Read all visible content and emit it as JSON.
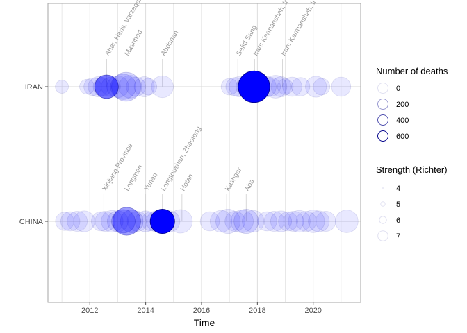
{
  "chart_data": {
    "type": "scatter",
    "title": "",
    "xlabel": "Time",
    "ylabel": "",
    "xlim": [
      2010.5,
      2021.7
    ],
    "x_ticks": [
      "2012",
      "2014",
      "2016",
      "2018",
      "2020"
    ],
    "categories": [
      "CHINA",
      "IRAN"
    ],
    "grid": true,
    "legend_position": "right",
    "colors": {
      "fill": "#0000ff",
      "outline": "#00008b",
      "grid": "#d9d9d9",
      "panel_border": "#a6a6a6"
    },
    "size_legend": {
      "title": "Number of deaths",
      "entries": [
        {
          "label": "0",
          "value": 0
        },
        {
          "label": "200",
          "value": 200
        },
        {
          "label": "400",
          "value": 400
        },
        {
          "label": "600",
          "value": 600
        }
      ]
    },
    "strength_legend": {
      "title": "Strength (Richter)",
      "entries": [
        {
          "label": "4",
          "value": 4
        },
        {
          "label": "5",
          "value": 5
        },
        {
          "label": "6",
          "value": 6
        },
        {
          "label": "7",
          "value": 7
        }
      ]
    },
    "annotations": [
      {
        "country": "IRAN",
        "x": 2012.6,
        "text": "Ahar, Haris, Varzaqan"
      },
      {
        "country": "IRAN",
        "x": 2013.3,
        "text": "Mashhad"
      },
      {
        "country": "IRAN",
        "x": 2014.6,
        "text": "Abdanan"
      },
      {
        "country": "IRAN",
        "x": 2017.3,
        "text": "Sefid Sang"
      },
      {
        "country": "IRAN",
        "x": 2017.9,
        "text": "Iran: Kermanshah; Ir"
      },
      {
        "country": "IRAN",
        "x": 2018.9,
        "text": "Iran: Kermanshah; Ir"
      },
      {
        "country": "CHINA",
        "x": 2012.5,
        "text": "Xinjiang Province"
      },
      {
        "country": "CHINA",
        "x": 2013.3,
        "text": "Longmen"
      },
      {
        "country": "CHINA",
        "x": 2014.0,
        "text": "Yunan"
      },
      {
        "country": "CHINA",
        "x": 2014.6,
        "text": "Longtoushan, Zhaotong"
      },
      {
        "country": "CHINA",
        "x": 2015.3,
        "text": "Hotan"
      },
      {
        "country": "CHINA",
        "x": 2016.9,
        "text": "Kashgar"
      },
      {
        "country": "CHINA",
        "x": 2017.6,
        "text": "Aba"
      }
    ],
    "series": [
      {
        "country": "IRAN",
        "points": [
          {
            "x": 2011.0,
            "magnitude": 5.2,
            "deaths": 0
          },
          {
            "x": 2011.9,
            "magnitude": 5.4,
            "deaths": 0
          },
          {
            "x": 2012.1,
            "magnitude": 5.7,
            "deaths": 2
          },
          {
            "x": 2012.3,
            "magnitude": 6.0,
            "deaths": 3
          },
          {
            "x": 2012.45,
            "magnitude": 5.8,
            "deaths": 1
          },
          {
            "x": 2012.6,
            "magnitude": 6.4,
            "deaths": 306
          },
          {
            "x": 2012.75,
            "magnitude": 5.9,
            "deaths": 2
          },
          {
            "x": 2013.0,
            "magnitude": 6.2,
            "deaths": 5
          },
          {
            "x": 2013.2,
            "magnitude": 6.6,
            "deaths": 37
          },
          {
            "x": 2013.3,
            "magnitude": 7.0,
            "deaths": 50
          },
          {
            "x": 2013.45,
            "magnitude": 6.3,
            "deaths": 5
          },
          {
            "x": 2013.65,
            "magnitude": 5.9,
            "deaths": 1
          },
          {
            "x": 2013.95,
            "magnitude": 6.0,
            "deaths": 2
          },
          {
            "x": 2014.1,
            "magnitude": 5.6,
            "deaths": 0
          },
          {
            "x": 2014.6,
            "magnitude": 6.2,
            "deaths": 0
          },
          {
            "x": 2017.0,
            "magnitude": 5.6,
            "deaths": 0
          },
          {
            "x": 2017.2,
            "magnitude": 5.8,
            "deaths": 1
          },
          {
            "x": 2017.35,
            "magnitude": 6.0,
            "deaths": 2
          },
          {
            "x": 2017.55,
            "magnitude": 5.7,
            "deaths": 0
          },
          {
            "x": 2017.7,
            "magnitude": 6.2,
            "deaths": 10
          },
          {
            "x": 2017.88,
            "magnitude": 7.3,
            "deaths": 630
          },
          {
            "x": 2018.1,
            "magnitude": 5.9,
            "deaths": 2
          },
          {
            "x": 2018.3,
            "magnitude": 6.1,
            "deaths": 5
          },
          {
            "x": 2018.5,
            "magnitude": 5.8,
            "deaths": 1
          },
          {
            "x": 2018.65,
            "magnitude": 6.3,
            "deaths": 3
          },
          {
            "x": 2018.85,
            "magnitude": 6.0,
            "deaths": 1
          },
          {
            "x": 2019.0,
            "magnitude": 5.5,
            "deaths": 0
          },
          {
            "x": 2019.25,
            "magnitude": 5.9,
            "deaths": 0
          },
          {
            "x": 2019.55,
            "magnitude": 5.8,
            "deaths": 0
          },
          {
            "x": 2020.1,
            "magnitude": 6.1,
            "deaths": 0
          },
          {
            "x": 2020.3,
            "magnitude": 5.6,
            "deaths": 0
          },
          {
            "x": 2021.0,
            "magnitude": 5.9,
            "deaths": 0
          }
        ]
      },
      {
        "country": "CHINA",
        "points": [
          {
            "x": 2011.1,
            "magnitude": 5.8,
            "deaths": 0
          },
          {
            "x": 2011.3,
            "magnitude": 5.9,
            "deaths": 2
          },
          {
            "x": 2011.55,
            "magnitude": 6.0,
            "deaths": 1
          },
          {
            "x": 2011.8,
            "magnitude": 6.1,
            "deaths": 0
          },
          {
            "x": 2012.4,
            "magnitude": 5.9,
            "deaths": 1
          },
          {
            "x": 2012.55,
            "magnitude": 6.0,
            "deaths": 4
          },
          {
            "x": 2012.8,
            "magnitude": 6.2,
            "deaths": 2
          },
          {
            "x": 2013.0,
            "magnitude": 6.1,
            "deaths": 10
          },
          {
            "x": 2013.2,
            "magnitude": 6.4,
            "deaths": 95
          },
          {
            "x": 2013.32,
            "magnitude": 6.9,
            "deaths": 196
          },
          {
            "x": 2013.5,
            "magnitude": 6.3,
            "deaths": 40
          },
          {
            "x": 2013.7,
            "magnitude": 6.0,
            "deaths": 2
          },
          {
            "x": 2014.0,
            "magnitude": 6.1,
            "deaths": 5
          },
          {
            "x": 2014.2,
            "magnitude": 5.9,
            "deaths": 1
          },
          {
            "x": 2014.4,
            "magnitude": 6.1,
            "deaths": 10
          },
          {
            "x": 2014.6,
            "magnitude": 6.5,
            "deaths": 617
          },
          {
            "x": 2014.85,
            "magnitude": 6.1,
            "deaths": 5
          },
          {
            "x": 2015.25,
            "magnitude": 6.4,
            "deaths": 0
          },
          {
            "x": 2016.3,
            "magnitude": 5.9,
            "deaths": 0
          },
          {
            "x": 2016.7,
            "magnitude": 6.2,
            "deaths": 1
          },
          {
            "x": 2016.95,
            "magnitude": 6.5,
            "deaths": 8
          },
          {
            "x": 2017.2,
            "magnitude": 6.0,
            "deaths": 1
          },
          {
            "x": 2017.45,
            "magnitude": 6.3,
            "deaths": 5
          },
          {
            "x": 2017.6,
            "magnitude": 6.5,
            "deaths": 25
          },
          {
            "x": 2017.85,
            "magnitude": 6.2,
            "deaths": 3
          },
          {
            "x": 2018.35,
            "magnitude": 5.9,
            "deaths": 0
          },
          {
            "x": 2018.6,
            "magnitude": 6.0,
            "deaths": 1
          },
          {
            "x": 2018.85,
            "magnitude": 6.1,
            "deaths": 0
          },
          {
            "x": 2019.1,
            "magnitude": 5.9,
            "deaths": 2
          },
          {
            "x": 2019.3,
            "magnitude": 6.0,
            "deaths": 0
          },
          {
            "x": 2019.5,
            "magnitude": 6.2,
            "deaths": 1
          },
          {
            "x": 2019.75,
            "magnitude": 6.0,
            "deaths": 0
          },
          {
            "x": 2020.0,
            "magnitude": 6.3,
            "deaths": 1
          },
          {
            "x": 2020.2,
            "magnitude": 6.1,
            "deaths": 0
          },
          {
            "x": 2020.45,
            "magnitude": 6.0,
            "deaths": 0
          },
          {
            "x": 2021.2,
            "magnitude": 6.3,
            "deaths": 0
          }
        ]
      }
    ]
  }
}
